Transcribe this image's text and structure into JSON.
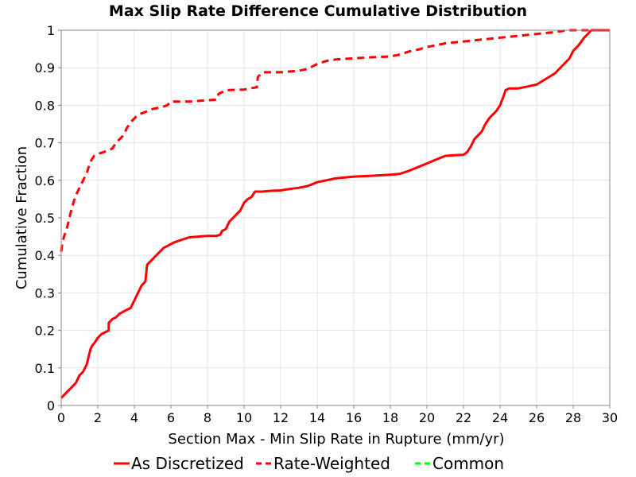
{
  "chart_data": {
    "type": "line",
    "title": "Max Slip Rate Difference Cumulative Distribution",
    "xlabel": "Section Max - Min Slip Rate in Rupture (mm/yr)",
    "ylabel": "Cumulative Fraction",
    "xlim": [
      0,
      30
    ],
    "ylim": [
      0,
      1
    ],
    "x_ticks": [
      "0",
      "2",
      "4",
      "6",
      "8",
      "10",
      "12",
      "14",
      "16",
      "18",
      "20",
      "22",
      "24",
      "26",
      "28",
      "30"
    ],
    "y_ticks": [
      "0",
      "0.1",
      "0.2",
      "0.3",
      "0.4",
      "0.5",
      "0.6",
      "0.7",
      "0.8",
      "0.9",
      "1"
    ],
    "grid": true,
    "legend_position": "bottom",
    "series": [
      {
        "name": "As Discretized",
        "color": "#ff0000",
        "dash": "solid",
        "x": [
          0.0,
          0.2,
          0.4,
          0.6,
          0.8,
          1.0,
          1.2,
          1.4,
          1.5,
          1.6,
          1.7,
          1.8,
          2.0,
          2.2,
          2.4,
          2.6,
          2.6,
          2.8,
          3.0,
          3.2,
          3.4,
          3.6,
          3.8,
          4.0,
          4.2,
          4.4,
          4.6,
          4.7,
          4.8,
          4.9,
          5.0,
          5.2,
          5.4,
          5.6,
          5.8,
          6.0,
          6.2,
          6.5,
          6.8,
          7.0,
          7.5,
          8.0,
          8.5,
          8.7,
          8.8,
          9.0,
          9.2,
          9.4,
          9.6,
          9.8,
          10.0,
          10.2,
          10.4,
          10.6,
          11.0,
          11.5,
          12.0,
          12.5,
          13.0,
          13.5,
          14.0,
          14.5,
          15.0,
          16.0,
          17.0,
          18.0,
          18.5,
          19.0,
          19.5,
          20.0,
          20.5,
          21.0,
          21.5,
          22.0,
          22.2,
          22.4,
          22.6,
          22.8,
          23.0,
          23.2,
          23.4,
          23.6,
          23.8,
          24.0,
          24.2,
          24.3,
          24.5,
          25.0,
          25.5,
          26.0,
          26.5,
          27.0,
          27.5,
          27.8,
          28.0,
          28.3,
          28.6,
          29.0,
          30.0
        ],
        "y": [
          0.02,
          0.03,
          0.04,
          0.05,
          0.06,
          0.08,
          0.09,
          0.11,
          0.13,
          0.15,
          0.16,
          0.165,
          0.18,
          0.19,
          0.195,
          0.2,
          0.22,
          0.23,
          0.235,
          0.245,
          0.25,
          0.255,
          0.26,
          0.28,
          0.3,
          0.32,
          0.33,
          0.375,
          0.38,
          0.385,
          0.39,
          0.4,
          0.41,
          0.42,
          0.425,
          0.43,
          0.435,
          0.44,
          0.445,
          0.448,
          0.45,
          0.452,
          0.452,
          0.455,
          0.465,
          0.47,
          0.49,
          0.5,
          0.51,
          0.52,
          0.54,
          0.55,
          0.555,
          0.57,
          0.57,
          0.572,
          0.573,
          0.577,
          0.58,
          0.585,
          0.595,
          0.6,
          0.605,
          0.61,
          0.612,
          0.615,
          0.617,
          0.625,
          0.635,
          0.645,
          0.655,
          0.665,
          0.667,
          0.668,
          0.675,
          0.69,
          0.71,
          0.72,
          0.73,
          0.75,
          0.765,
          0.775,
          0.785,
          0.8,
          0.825,
          0.84,
          0.845,
          0.845,
          0.85,
          0.855,
          0.87,
          0.885,
          0.91,
          0.925,
          0.945,
          0.96,
          0.98,
          1.0,
          1.0
        ]
      },
      {
        "name": "Rate-Weighted",
        "color": "#ff0000",
        "dash": "dashed",
        "x": [
          0.0,
          0.05,
          0.15,
          0.3,
          0.45,
          0.6,
          0.8,
          1.0,
          1.2,
          1.4,
          1.6,
          1.8,
          2.0,
          2.3,
          2.6,
          2.8,
          3.0,
          3.2,
          3.4,
          3.6,
          3.8,
          4.0,
          4.2,
          4.5,
          5.0,
          5.5,
          5.8,
          6.0,
          7.0,
          8.5,
          8.6,
          9.0,
          10.0,
          10.7,
          10.75,
          11.0,
          12.0,
          13.0,
          13.5,
          13.8,
          14.0,
          14.5,
          15.0,
          16.0,
          17.0,
          18.0,
          18.5,
          19.0,
          19.5,
          20.0,
          20.5,
          21.0,
          22.0,
          23.0,
          24.0,
          25.0,
          26.0,
          27.0,
          27.7,
          28.0,
          29.0,
          30.0
        ],
        "y": [
          0.41,
          0.43,
          0.45,
          0.47,
          0.5,
          0.53,
          0.56,
          0.58,
          0.6,
          0.62,
          0.65,
          0.665,
          0.67,
          0.675,
          0.68,
          0.685,
          0.7,
          0.71,
          0.72,
          0.74,
          0.755,
          0.765,
          0.775,
          0.78,
          0.79,
          0.795,
          0.8,
          0.81,
          0.81,
          0.815,
          0.83,
          0.84,
          0.842,
          0.848,
          0.875,
          0.888,
          0.888,
          0.892,
          0.897,
          0.905,
          0.91,
          0.918,
          0.922,
          0.925,
          0.928,
          0.93,
          0.935,
          0.943,
          0.948,
          0.955,
          0.96,
          0.965,
          0.97,
          0.975,
          0.98,
          0.985,
          0.99,
          0.995,
          1.0,
          1.0,
          1.0,
          1.0
        ]
      },
      {
        "name": "Common",
        "color": "#00ff00",
        "dash": "dashed",
        "x": [],
        "y": []
      }
    ]
  }
}
